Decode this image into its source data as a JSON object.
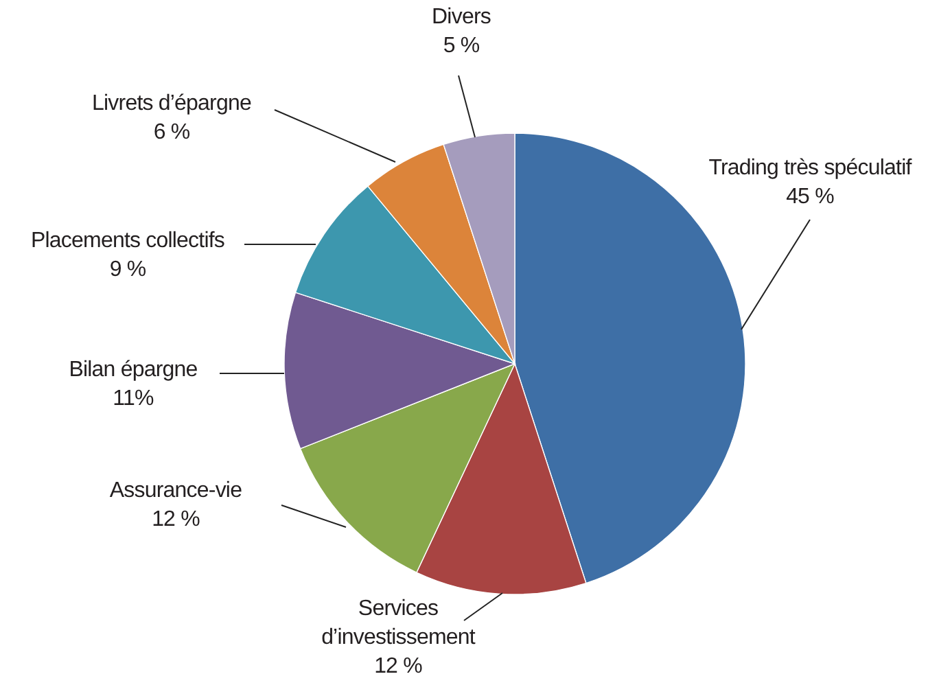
{
  "chart_data": {
    "type": "pie",
    "categories": [
      "Trading très spéculatif",
      "Services d’investissement",
      "Assurance-vie",
      "Bilan épargne",
      "Placements collectifs",
      "Livrets d’épargne",
      "Divers"
    ],
    "values": [
      45,
      12,
      12,
      11,
      9,
      6,
      5
    ],
    "colors": [
      "#3e6fa6",
      "#a84442",
      "#88a84b",
      "#705a91",
      "#3d97ae",
      "#dc843a",
      "#a59cbd"
    ],
    "value_labels": [
      "45 %",
      "12 %",
      "12 %",
      "11%",
      "9 %",
      "6 %",
      "5 %"
    ]
  }
}
